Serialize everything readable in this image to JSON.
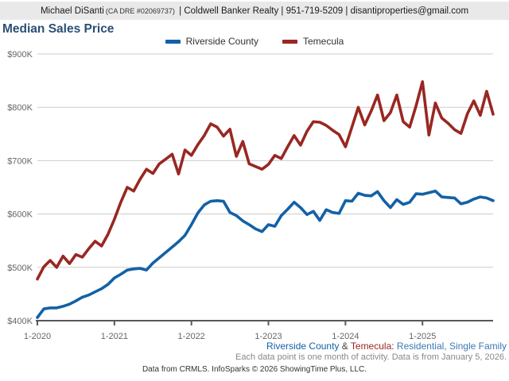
{
  "header": {
    "agent": "Michael DiSanti",
    "license": "(CA DRE #02069737)",
    "rest": " | Coldwell Banker Realty | 951-719-5209 | disantiproperties@gmail.com"
  },
  "title": "Median Sales Price",
  "legend": {
    "items": [
      {
        "label": "Riverside County",
        "color": "#1361a5"
      },
      {
        "label": "Temecula",
        "color": "#992722"
      }
    ]
  },
  "chart_data": {
    "type": "line",
    "title": "Median Sales Price",
    "interval": "month",
    "x_start": "2020-01",
    "x_end": "2025-12",
    "x_tick_labels": [
      "1-2020",
      "1-2021",
      "1-2022",
      "1-2023",
      "1-2024",
      "1-2025"
    ],
    "y_ticks": [
      400,
      500,
      600,
      700,
      800,
      900
    ],
    "y_tick_labels": [
      "$400K",
      "$500K",
      "$600K",
      "$700K",
      "$800K",
      "$900K"
    ],
    "y_unit": "USD thousands",
    "ylim": [
      400,
      920
    ],
    "grid": "horizontal",
    "legend_position": "top-center",
    "colors": {
      "axis": "#58585a",
      "gridline": "#cccccc",
      "tick_text": "#666666"
    },
    "series": [
      {
        "name": "Riverside County",
        "color": "#1361a5",
        "values": [
          406,
          422,
          424,
          424,
          427,
          431,
          437,
          444,
          448,
          454,
          460,
          468,
          480,
          487,
          495,
          497,
          498,
          495,
          508,
          518,
          528,
          538,
          548,
          560,
          580,
          602,
          617,
          624,
          625,
          624,
          603,
          597,
          587,
          580,
          572,
          567,
          580,
          577,
          597,
          609,
          622,
          612,
          599,
          605,
          588,
          608,
          603,
          601,
          625,
          624,
          639,
          635,
          634,
          642,
          625,
          612,
          627,
          618,
          622,
          638,
          637,
          640,
          643,
          632,
          631,
          630,
          619,
          622,
          628,
          632,
          630,
          625
        ]
      },
      {
        "name": "Temecula",
        "color": "#992722",
        "values": [
          478,
          501,
          513,
          500,
          521,
          507,
          524,
          519,
          535,
          549,
          540,
          562,
          590,
          622,
          650,
          643,
          665,
          684,
          676,
          694,
          703,
          712,
          675,
          720,
          710,
          730,
          747,
          769,
          763,
          746,
          759,
          708,
          736,
          694,
          689,
          684,
          693,
          710,
          704,
          726,
          747,
          729,
          755,
          773,
          772,
          766,
          757,
          749,
          726,
          763,
          800,
          767,
          793,
          823,
          775,
          790,
          823,
          773,
          763,
          803,
          848,
          748,
          808,
          780,
          770,
          758,
          751,
          788,
          812,
          785,
          830,
          787
        ]
      }
    ]
  },
  "footnote1": {
    "part1": "Riverside County",
    "amp": " & ",
    "part2": "Temecula",
    "colon": ":",
    "rest": " Residential, Single Family"
  },
  "footnote2": "Each data point is one month of activity. Data is from January 5, 2026.",
  "footer": "Data from CRMLS. InfoSparks © 2026 ShowingTime Plus, LLC."
}
